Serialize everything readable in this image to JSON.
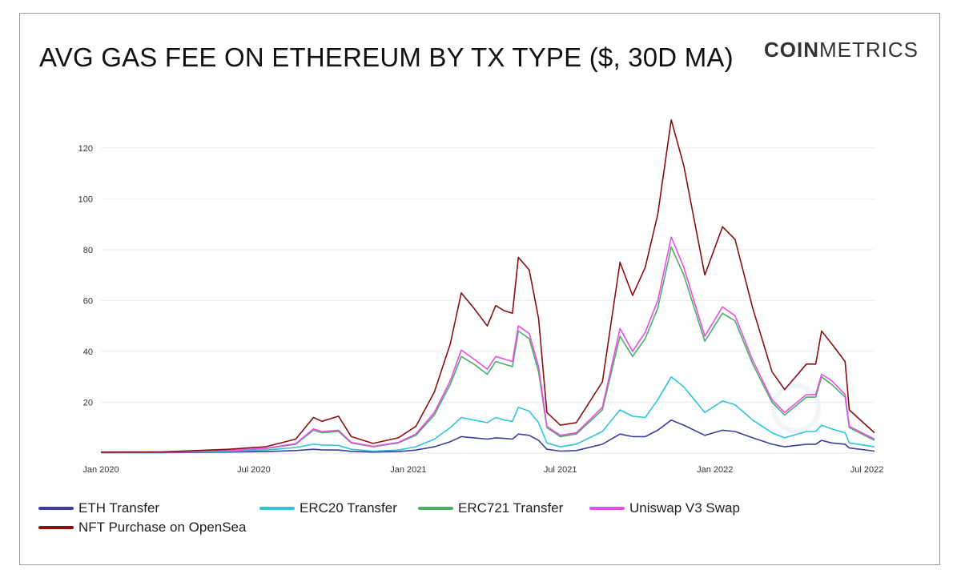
{
  "title": "AVG GAS FEE ON ETHEREUM BY TX TYPE ($, 30D MA)",
  "brand": {
    "bold": "COIN",
    "light": "METRICS"
  },
  "chart_data": {
    "type": "line",
    "title": "AVG GAS FEE ON ETHEREUM BY TX TYPE ($, 30D MA)",
    "xlabel": "",
    "ylabel": "",
    "ylim": [
      0,
      130
    ],
    "yticks": [
      20,
      40,
      60,
      80,
      100,
      120
    ],
    "xlim": [
      "2020-01-01",
      "2022-07-10"
    ],
    "xticks": [
      {
        "date": "2020-01-01",
        "label": "Jan 2020"
      },
      {
        "date": "2020-07-01",
        "label": "Jul 2020"
      },
      {
        "date": "2021-01-01",
        "label": "Jan 2021"
      },
      {
        "date": "2021-07-01",
        "label": "Jul 2021"
      },
      {
        "date": "2022-01-01",
        "label": "Jan 2022"
      },
      {
        "date": "2022-07-01",
        "label": "Jul 2022"
      }
    ],
    "grid": "horizontal",
    "legend_position": "bottom-left",
    "series": [
      {
        "name": "ETH Transfer",
        "color": "#3a3f9e",
        "points": [
          [
            "2020-01-01",
            0.2
          ],
          [
            "2020-03-15",
            0.2
          ],
          [
            "2020-06-01",
            0.4
          ],
          [
            "2020-07-15",
            0.6
          ],
          [
            "2020-08-20",
            1.0
          ],
          [
            "2020-09-10",
            1.5
          ],
          [
            "2020-09-20",
            1.3
          ],
          [
            "2020-10-10",
            1.2
          ],
          [
            "2020-10-25",
            0.7
          ],
          [
            "2020-11-20",
            0.4
          ],
          [
            "2020-12-20",
            0.6
          ],
          [
            "2021-01-10",
            1.2
          ],
          [
            "2021-02-01",
            2.5
          ],
          [
            "2021-02-20",
            4.5
          ],
          [
            "2021-03-05",
            6.5
          ],
          [
            "2021-03-20",
            6.0
          ],
          [
            "2021-04-05",
            5.5
          ],
          [
            "2021-04-15",
            6.0
          ],
          [
            "2021-04-25",
            5.8
          ],
          [
            "2021-05-05",
            5.5
          ],
          [
            "2021-05-12",
            7.5
          ],
          [
            "2021-05-25",
            7.0
          ],
          [
            "2021-06-05",
            5.0
          ],
          [
            "2021-06-15",
            1.5
          ],
          [
            "2021-07-01",
            0.8
          ],
          [
            "2021-07-20",
            1.0
          ],
          [
            "2021-08-20",
            3.5
          ],
          [
            "2021-09-10",
            7.5
          ],
          [
            "2021-09-25",
            6.5
          ],
          [
            "2021-10-10",
            6.5
          ],
          [
            "2021-10-25",
            9.0
          ],
          [
            "2021-11-10",
            13.0
          ],
          [
            "2021-11-25",
            11.0
          ],
          [
            "2021-12-20",
            7.0
          ],
          [
            "2022-01-10",
            9.0
          ],
          [
            "2022-01-25",
            8.5
          ],
          [
            "2022-02-15",
            6.0
          ],
          [
            "2022-03-10",
            3.5
          ],
          [
            "2022-03-25",
            2.5
          ],
          [
            "2022-04-20",
            3.5
          ],
          [
            "2022-05-01",
            3.5
          ],
          [
            "2022-05-08",
            5.0
          ],
          [
            "2022-05-20",
            4.0
          ],
          [
            "2022-06-05",
            3.5
          ],
          [
            "2022-06-10",
            2.0
          ],
          [
            "2022-07-10",
            0.8
          ]
        ]
      },
      {
        "name": "ERC20 Transfer",
        "color": "#2ec6d8",
        "points": [
          [
            "2020-01-01",
            0.3
          ],
          [
            "2020-03-15",
            0.3
          ],
          [
            "2020-06-01",
            0.7
          ],
          [
            "2020-07-15",
            1.2
          ],
          [
            "2020-08-20",
            2.2
          ],
          [
            "2020-09-10",
            3.5
          ],
          [
            "2020-09-20",
            3.2
          ],
          [
            "2020-10-10",
            3.0
          ],
          [
            "2020-10-25",
            1.5
          ],
          [
            "2020-11-20",
            0.8
          ],
          [
            "2020-12-20",
            1.2
          ],
          [
            "2021-01-10",
            2.5
          ],
          [
            "2021-02-01",
            5.5
          ],
          [
            "2021-02-20",
            10.0
          ],
          [
            "2021-03-05",
            14.0
          ],
          [
            "2021-03-20",
            13.0
          ],
          [
            "2021-04-05",
            12.0
          ],
          [
            "2021-04-15",
            14.0
          ],
          [
            "2021-04-25",
            13.0
          ],
          [
            "2021-05-05",
            12.5
          ],
          [
            "2021-05-12",
            18.0
          ],
          [
            "2021-05-25",
            16.5
          ],
          [
            "2021-06-05",
            12.0
          ],
          [
            "2021-06-15",
            4.0
          ],
          [
            "2021-07-01",
            2.5
          ],
          [
            "2021-07-20",
            3.5
          ],
          [
            "2021-08-20",
            8.5
          ],
          [
            "2021-09-10",
            17.0
          ],
          [
            "2021-09-25",
            14.5
          ],
          [
            "2021-10-10",
            14.0
          ],
          [
            "2021-10-25",
            21.0
          ],
          [
            "2021-11-10",
            30.0
          ],
          [
            "2021-11-25",
            26.0
          ],
          [
            "2021-12-20",
            16.0
          ],
          [
            "2022-01-10",
            20.5
          ],
          [
            "2022-01-25",
            19.0
          ],
          [
            "2022-02-15",
            13.0
          ],
          [
            "2022-03-10",
            8.0
          ],
          [
            "2022-03-25",
            6.0
          ],
          [
            "2022-04-20",
            8.5
          ],
          [
            "2022-05-01",
            8.5
          ],
          [
            "2022-05-08",
            11.0
          ],
          [
            "2022-05-20",
            9.5
          ],
          [
            "2022-06-05",
            8.0
          ],
          [
            "2022-06-10",
            4.0
          ],
          [
            "2022-07-10",
            2.5
          ]
        ]
      },
      {
        "name": "ERC721 Transfer",
        "color": "#4caf68",
        "points": [
          [
            "2020-01-01",
            0.3
          ],
          [
            "2020-03-15",
            0.4
          ],
          [
            "2020-06-01",
            1.0
          ],
          [
            "2020-07-15",
            1.8
          ],
          [
            "2020-08-20",
            3.5
          ],
          [
            "2020-09-10",
            9.0
          ],
          [
            "2020-09-20",
            8.0
          ],
          [
            "2020-10-10",
            8.5
          ],
          [
            "2020-10-25",
            4.0
          ],
          [
            "2020-11-20",
            2.5
          ],
          [
            "2020-12-20",
            4.0
          ],
          [
            "2021-01-10",
            7.0
          ],
          [
            "2021-02-01",
            15.0
          ],
          [
            "2021-02-20",
            27.0
          ],
          [
            "2021-03-05",
            38.0
          ],
          [
            "2021-03-20",
            35.0
          ],
          [
            "2021-04-05",
            31.0
          ],
          [
            "2021-04-15",
            36.0
          ],
          [
            "2021-04-25",
            35.0
          ],
          [
            "2021-05-05",
            34.0
          ],
          [
            "2021-05-12",
            48.0
          ],
          [
            "2021-05-25",
            45.0
          ],
          [
            "2021-06-05",
            32.0
          ],
          [
            "2021-06-15",
            10.0
          ],
          [
            "2021-07-01",
            6.5
          ],
          [
            "2021-07-20",
            7.5
          ],
          [
            "2021-08-20",
            17.0
          ],
          [
            "2021-09-10",
            46.0
          ],
          [
            "2021-09-25",
            38.0
          ],
          [
            "2021-10-10",
            45.0
          ],
          [
            "2021-10-25",
            57.0
          ],
          [
            "2021-11-10",
            81.0
          ],
          [
            "2021-11-25",
            70.0
          ],
          [
            "2021-12-20",
            44.0
          ],
          [
            "2022-01-10",
            55.0
          ],
          [
            "2022-01-25",
            52.0
          ],
          [
            "2022-02-15",
            35.0
          ],
          [
            "2022-03-10",
            20.0
          ],
          [
            "2022-03-25",
            15.0
          ],
          [
            "2022-04-20",
            22.0
          ],
          [
            "2022-05-01",
            22.0
          ],
          [
            "2022-05-08",
            30.0
          ],
          [
            "2022-05-20",
            27.0
          ],
          [
            "2022-06-05",
            22.0
          ],
          [
            "2022-06-10",
            10.0
          ],
          [
            "2022-07-10",
            5.0
          ]
        ]
      },
      {
        "name": "Uniswap V3 Swap",
        "color": "#e84de6",
        "points": [
          [
            "2020-01-01",
            0.3
          ],
          [
            "2020-03-15",
            0.4
          ],
          [
            "2020-06-01",
            1.0
          ],
          [
            "2020-07-15",
            1.9
          ],
          [
            "2020-08-20",
            3.7
          ],
          [
            "2020-09-10",
            9.5
          ],
          [
            "2020-09-20",
            8.5
          ],
          [
            "2020-10-10",
            9.0
          ],
          [
            "2020-10-25",
            4.2
          ],
          [
            "2020-11-20",
            2.6
          ],
          [
            "2020-12-20",
            4.2
          ],
          [
            "2021-01-10",
            7.5
          ],
          [
            "2021-02-01",
            16.0
          ],
          [
            "2021-02-20",
            28.5
          ],
          [
            "2021-03-05",
            40.5
          ],
          [
            "2021-03-20",
            37.0
          ],
          [
            "2021-04-05",
            33.0
          ],
          [
            "2021-04-15",
            38.0
          ],
          [
            "2021-04-25",
            37.0
          ],
          [
            "2021-05-05",
            36.0
          ],
          [
            "2021-05-12",
            50.0
          ],
          [
            "2021-05-25",
            47.0
          ],
          [
            "2021-06-05",
            34.0
          ],
          [
            "2021-06-15",
            10.5
          ],
          [
            "2021-07-01",
            7.0
          ],
          [
            "2021-07-20",
            8.0
          ],
          [
            "2021-08-20",
            18.0
          ],
          [
            "2021-09-10",
            49.0
          ],
          [
            "2021-09-25",
            40.0
          ],
          [
            "2021-10-10",
            47.5
          ],
          [
            "2021-10-25",
            60.0
          ],
          [
            "2021-11-10",
            85.0
          ],
          [
            "2021-11-25",
            73.0
          ],
          [
            "2021-12-20",
            46.0
          ],
          [
            "2022-01-10",
            57.5
          ],
          [
            "2022-01-25",
            54.0
          ],
          [
            "2022-02-15",
            36.5
          ],
          [
            "2022-03-10",
            21.0
          ],
          [
            "2022-03-25",
            16.0
          ],
          [
            "2022-04-20",
            23.0
          ],
          [
            "2022-05-01",
            23.0
          ],
          [
            "2022-05-08",
            31.0
          ],
          [
            "2022-05-20",
            28.5
          ],
          [
            "2022-06-05",
            23.0
          ],
          [
            "2022-06-10",
            10.5
          ],
          [
            "2022-07-10",
            5.5
          ]
        ]
      },
      {
        "name": "NFT Purchase on OpenSea",
        "color": "#8b0f0f",
        "points": [
          [
            "2020-01-01",
            0.4
          ],
          [
            "2020-03-15",
            0.5
          ],
          [
            "2020-06-01",
            1.5
          ],
          [
            "2020-07-15",
            2.5
          ],
          [
            "2020-08-20",
            5.5
          ],
          [
            "2020-09-10",
            14.0
          ],
          [
            "2020-09-20",
            12.5
          ],
          [
            "2020-10-10",
            14.5
          ],
          [
            "2020-10-25",
            6.5
          ],
          [
            "2020-11-20",
            3.8
          ],
          [
            "2020-12-20",
            6.0
          ],
          [
            "2021-01-10",
            10.5
          ],
          [
            "2021-02-01",
            24.0
          ],
          [
            "2021-02-20",
            43.0
          ],
          [
            "2021-03-05",
            63.0
          ],
          [
            "2021-03-20",
            57.0
          ],
          [
            "2021-04-05",
            50.0
          ],
          [
            "2021-04-15",
            58.0
          ],
          [
            "2021-04-25",
            56.0
          ],
          [
            "2021-05-05",
            55.0
          ],
          [
            "2021-05-12",
            77.0
          ],
          [
            "2021-05-25",
            72.0
          ],
          [
            "2021-06-05",
            53.0
          ],
          [
            "2021-06-15",
            16.0
          ],
          [
            "2021-07-01",
            11.0
          ],
          [
            "2021-07-20",
            12.0
          ],
          [
            "2021-08-20",
            28.0
          ],
          [
            "2021-09-10",
            75.0
          ],
          [
            "2021-09-25",
            62.0
          ],
          [
            "2021-10-10",
            73.0
          ],
          [
            "2021-10-25",
            94.0
          ],
          [
            "2021-11-10",
            131.0
          ],
          [
            "2021-11-25",
            113.0
          ],
          [
            "2021-12-20",
            70.0
          ],
          [
            "2022-01-10",
            89.0
          ],
          [
            "2022-01-25",
            84.0
          ],
          [
            "2022-02-15",
            57.0
          ],
          [
            "2022-03-10",
            32.0
          ],
          [
            "2022-03-25",
            25.0
          ],
          [
            "2022-04-20",
            35.0
          ],
          [
            "2022-05-01",
            35.0
          ],
          [
            "2022-05-08",
            48.0
          ],
          [
            "2022-05-20",
            43.0
          ],
          [
            "2022-06-05",
            36.0
          ],
          [
            "2022-06-10",
            17.0
          ],
          [
            "2022-07-10",
            8.0
          ]
        ]
      }
    ]
  }
}
